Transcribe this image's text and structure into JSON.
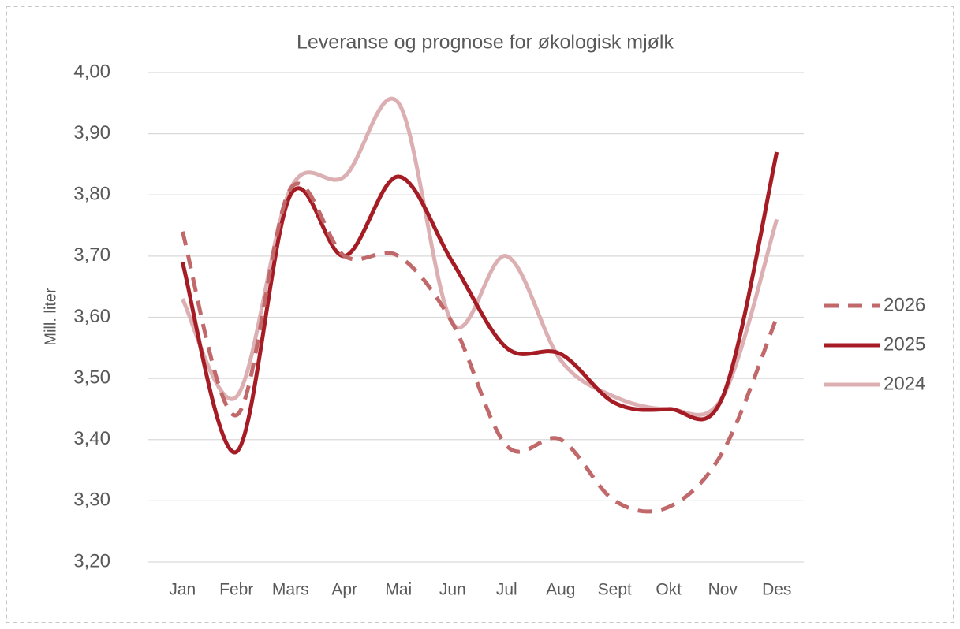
{
  "chart_data": {
    "type": "line",
    "title": "Leveranse og prognose for økologisk mjølk",
    "y_label": "Mill. liter",
    "categories": [
      "Jan",
      "Febr",
      "Mars",
      "Apr",
      "Mai",
      "Jun",
      "Jul",
      "Aug",
      "Sept",
      "Okt",
      "Nov",
      "Des"
    ],
    "series": [
      {
        "name": "2026",
        "color": "#c0686a",
        "dashed": true,
        "values": [
          3.74,
          3.44,
          3.81,
          3.7,
          3.7,
          3.59,
          3.39,
          3.4,
          3.3,
          3.29,
          3.38,
          3.6
        ]
      },
      {
        "name": "2025",
        "color": "#a51c24",
        "dashed": false,
        "values": [
          3.69,
          3.38,
          3.8,
          3.7,
          3.83,
          3.69,
          3.55,
          3.54,
          3.46,
          3.45,
          3.47,
          3.87
        ]
      },
      {
        "name": "2024",
        "color": "#dcb0b3",
        "dashed": false,
        "values": [
          3.63,
          3.47,
          3.81,
          3.83,
          3.95,
          3.59,
          3.7,
          3.53,
          3.47,
          3.45,
          3.47,
          3.76
        ]
      }
    ],
    "ylim": [
      3.2,
      4.0
    ],
    "yticks": [
      {
        "value": 3.2,
        "label": "3,20"
      },
      {
        "value": 3.3,
        "label": "3,30"
      },
      {
        "value": 3.4,
        "label": "3,40"
      },
      {
        "value": 3.5,
        "label": "3,50"
      },
      {
        "value": 3.6,
        "label": "3,60"
      },
      {
        "value": 3.7,
        "label": "3,70"
      },
      {
        "value": 3.8,
        "label": "3,80"
      },
      {
        "value": 3.9,
        "label": "3,90"
      },
      {
        "value": 4.0,
        "label": "4,00"
      }
    ],
    "grid": true,
    "legend": "right"
  }
}
